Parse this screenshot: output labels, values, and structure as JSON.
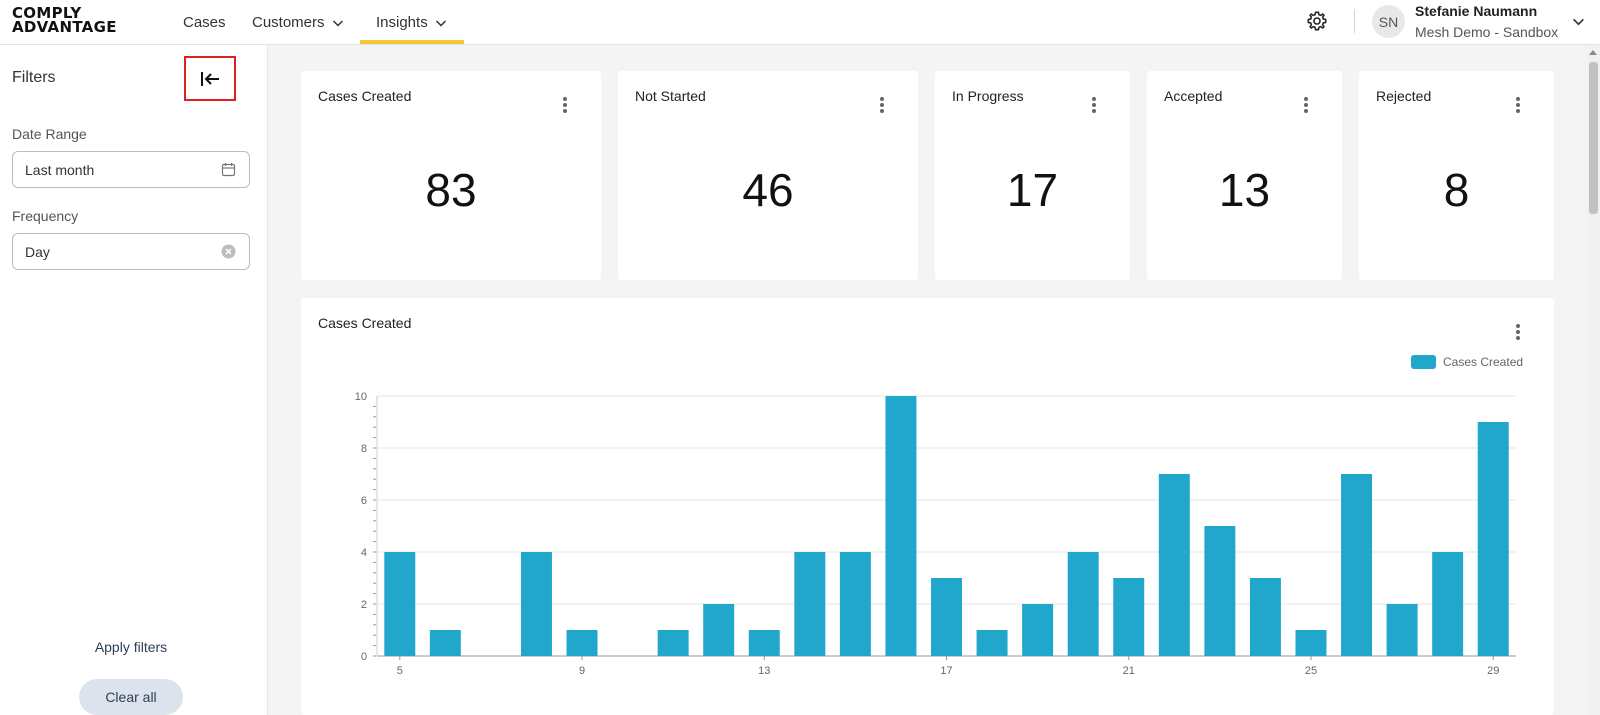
{
  "header": {
    "logo_line1": "COMPLY",
    "logo_line2": "ADVANTAGE",
    "nav": [
      {
        "label": "Cases",
        "has_dropdown": false,
        "active": false
      },
      {
        "label": "Customers",
        "has_dropdown": true,
        "active": false
      },
      {
        "label": "Insights",
        "has_dropdown": true,
        "active": true
      }
    ],
    "user_initials": "SN",
    "user_name": "Stefanie Naumann",
    "user_org": "Mesh Demo - Sandbox",
    "icons": {
      "settings": "gear-icon",
      "user_menu": "chevron-down-icon"
    }
  },
  "sidebar": {
    "title": "Filters",
    "date_range_label": "Date Range",
    "date_range_value": "Last month",
    "frequency_label": "Frequency",
    "frequency_value": "Day",
    "apply_label": "Apply filters",
    "clear_label": "Clear all",
    "icons": {
      "collapse": "collapse-left-icon",
      "date": "calendar-icon",
      "clear_field": "clear-circle-icon"
    }
  },
  "kpis": [
    {
      "title": "Cases Created",
      "value": "83"
    },
    {
      "title": "Not Started",
      "value": "46"
    },
    {
      "title": "In Progress",
      "value": "17"
    },
    {
      "title": "Accepted",
      "value": "13"
    },
    {
      "title": "Rejected",
      "value": "8"
    }
  ],
  "chart_card": {
    "title": "Cases Created",
    "legend_label": "Cases Created"
  },
  "chart_data": {
    "type": "bar",
    "title": "Cases Created",
    "xlabel": "",
    "ylabel": "",
    "x": [
      5,
      6,
      7,
      8,
      9,
      10,
      11,
      12,
      13,
      14,
      15,
      16,
      17,
      18,
      19,
      20,
      21,
      22,
      23,
      24,
      25,
      26,
      27,
      28,
      29
    ],
    "x_tick_labels": [
      "5",
      "9",
      "13",
      "17",
      "21",
      "25",
      "29"
    ],
    "series": [
      {
        "name": "Cases Created",
        "values": [
          4,
          1,
          0,
          4,
          1,
          0,
          1,
          2,
          1,
          4,
          4,
          10,
          3,
          1,
          2,
          4,
          3,
          7,
          5,
          3,
          1,
          7,
          2,
          4,
          9
        ]
      }
    ],
    "ylim": [
      0,
      10
    ],
    "y_ticks": [
      0,
      2,
      4,
      6,
      8,
      10
    ],
    "grid": true,
    "legend_position": "top-right",
    "color": "#22a7cc"
  },
  "colors": {
    "accent": "#f2c935",
    "bar": "#22a7cc",
    "highlight_box": "#e0201c"
  }
}
